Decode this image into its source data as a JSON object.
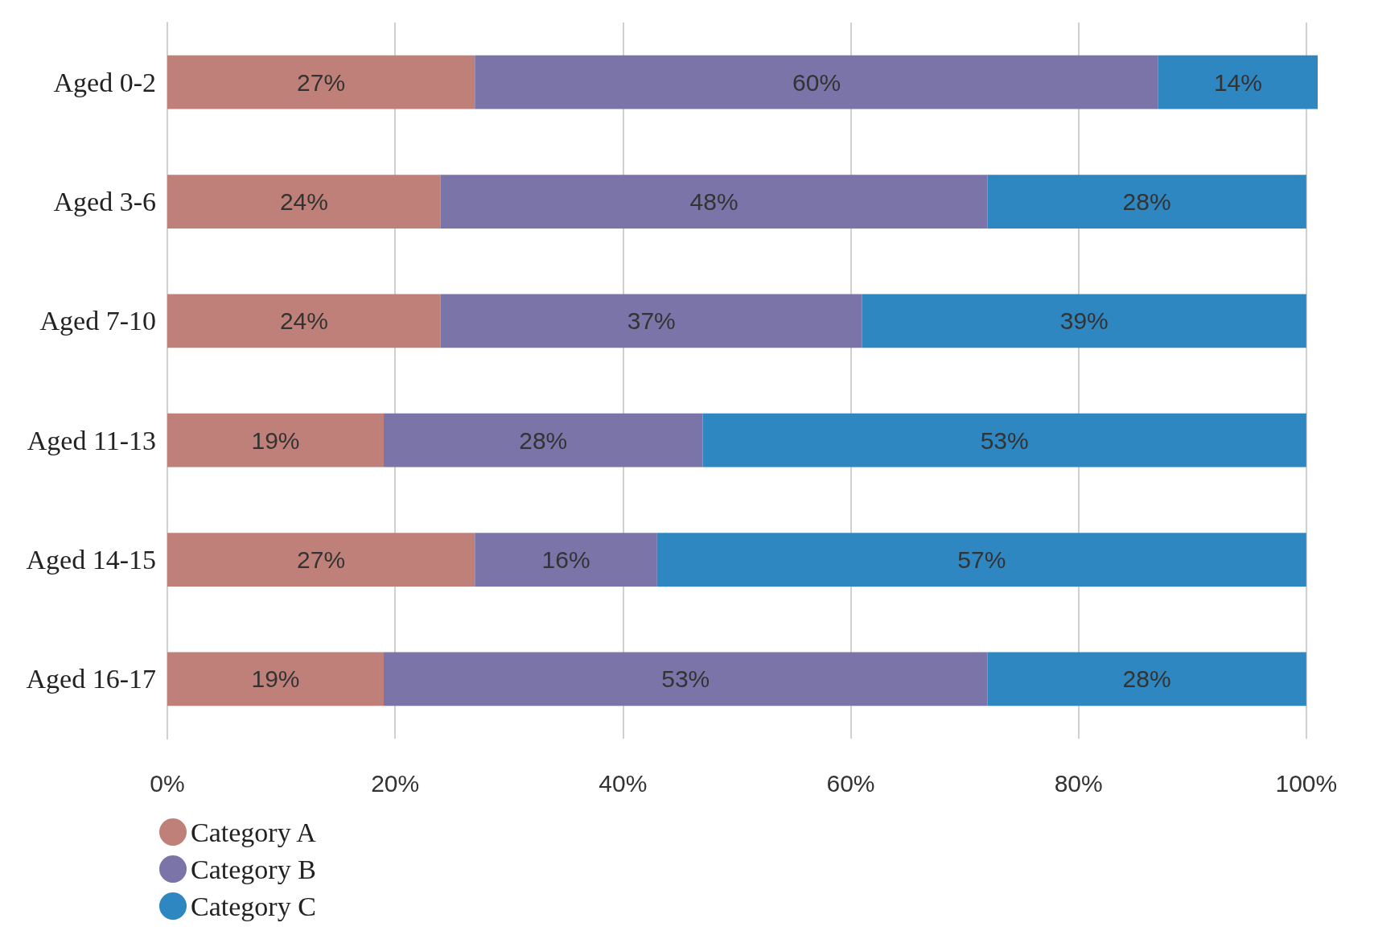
{
  "chart_data": {
    "type": "bar",
    "orientation": "horizontal",
    "stacked": true,
    "categories": [
      "Aged 0-2",
      "Aged 3-6",
      "Aged 7-10",
      "Aged 11-13",
      "Aged 14-15",
      "Aged 16-17"
    ],
    "series": [
      {
        "name": "Category A",
        "color": "#c0807a",
        "values": [
          27,
          24,
          24,
          19,
          27,
          19
        ],
        "value_labels": [
          "27%",
          "24%",
          "24%",
          "19%",
          "27%",
          "19%"
        ]
      },
      {
        "name": "Category B",
        "color": "#7b74a8",
        "values": [
          60,
          48,
          37,
          28,
          16,
          53
        ],
        "value_labels": [
          "60%",
          "48%",
          "37%",
          "28%",
          "16%",
          "53%"
        ]
      },
      {
        "name": "Category C",
        "color": "#2e87c0",
        "values": [
          14,
          28,
          39,
          53,
          57,
          28
        ],
        "value_labels": [
          "14%",
          "28%",
          "39%",
          "53%",
          "57%",
          "28%"
        ]
      }
    ],
    "xlim": [
      0,
      101
    ],
    "xticks": [
      {
        "value": 0,
        "label": "0%"
      },
      {
        "value": 20,
        "label": "20%"
      },
      {
        "value": 40,
        "label": "40%"
      },
      {
        "value": 60,
        "label": "60%"
      },
      {
        "value": 80,
        "label": "80%"
      },
      {
        "value": 100,
        "label": "100%"
      }
    ],
    "grid": "x",
    "legend": "bottom left"
  }
}
